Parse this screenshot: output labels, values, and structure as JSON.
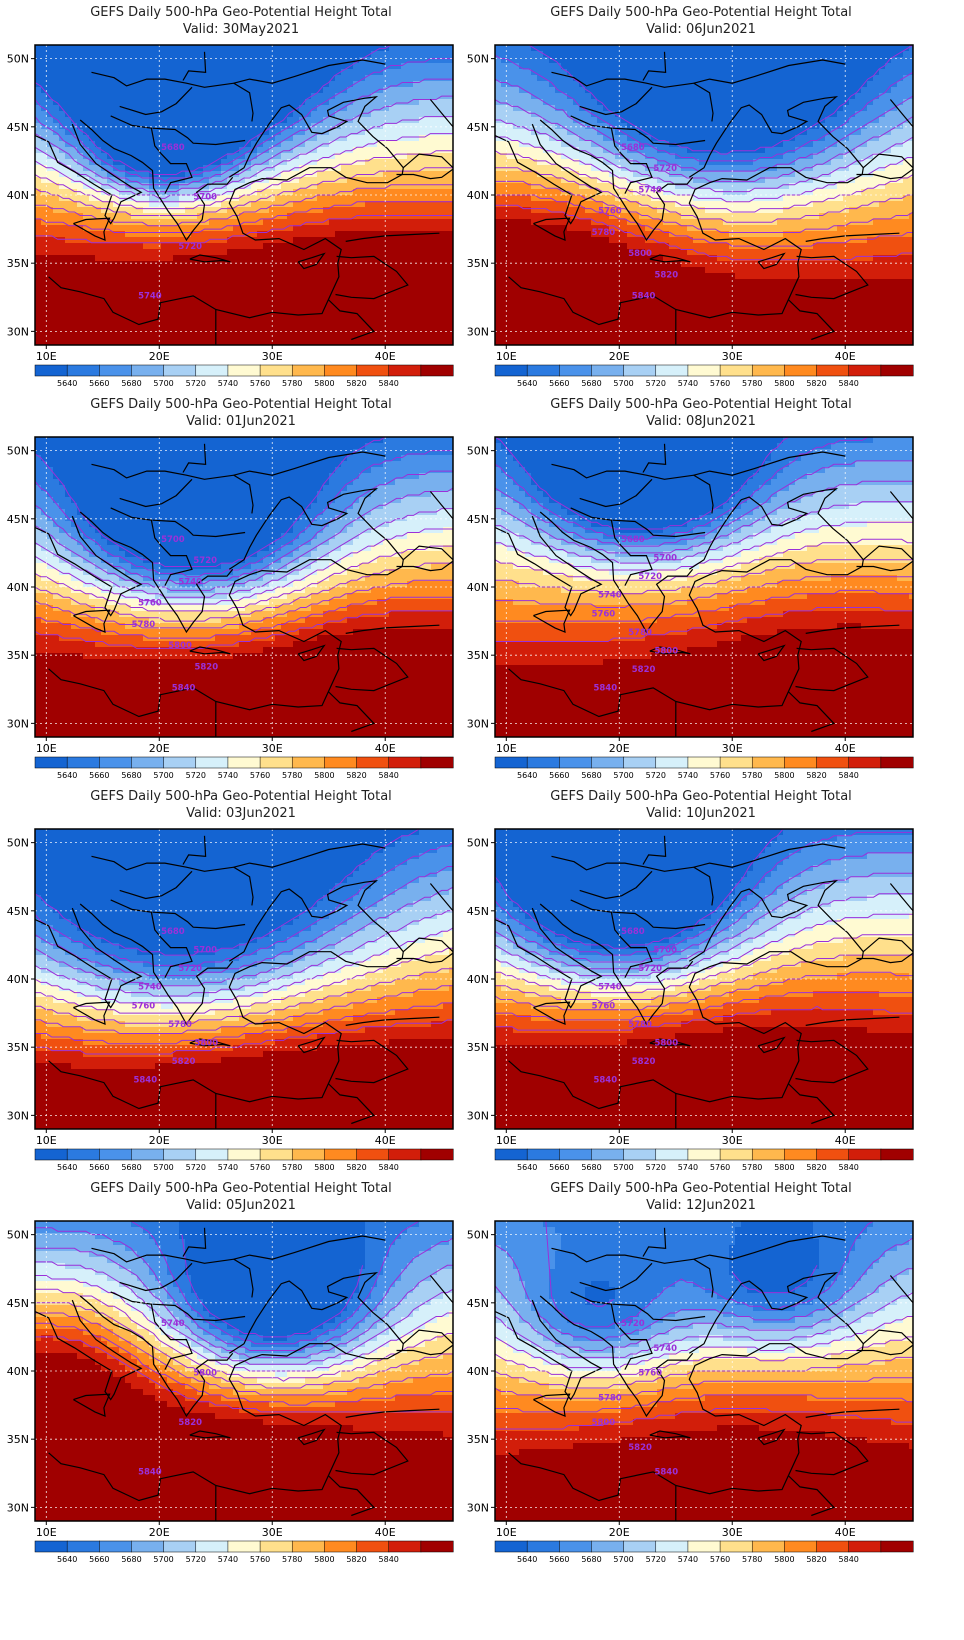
{
  "panels": [
    {
      "title": "GEFS Daily 500-hPa Geo-Potential Height Total",
      "valid": "Valid: 30May2021",
      "labels": [
        "5680",
        "5700",
        "5720",
        "5740"
      ],
      "field": {
        "base": 5800,
        "amp": 0,
        "lows": [
          [
            22,
            48,
            -180,
            7
          ],
          [
            20,
            43,
            -80,
            4
          ]
        ],
        "highs": [
          [
            40,
            30,
            60,
            8
          ]
        ],
        "grad": 14
      }
    },
    {
      "title": "GEFS Daily 500-hPa Geo-Potential Height Total",
      "valid": "Valid: 06Jun2021",
      "labels": [
        "5680",
        "5720",
        "5740",
        "5760",
        "5780",
        "5800",
        "5820",
        "5840"
      ],
      "field": {
        "base": 5790,
        "amp": 0,
        "lows": [
          [
            29,
            47,
            -150,
            8
          ]
        ],
        "highs": [
          [
            12,
            33,
            80,
            8
          ]
        ],
        "grad": 12
      }
    },
    {
      "title": "GEFS Daily 500-hPa Geo-Potential Height Total",
      "valid": "Valid: 01Jun2021",
      "labels": [
        "5700",
        "5720",
        "5740",
        "5760",
        "5780",
        "5800",
        "5820",
        "5840"
      ],
      "field": {
        "base": 5800,
        "amp": 0,
        "lows": [
          [
            23,
            45,
            -190,
            7
          ]
        ],
        "highs": [
          [
            40,
            30,
            50,
            8
          ]
        ],
        "grad": 14
      }
    },
    {
      "title": "GEFS Daily 500-hPa Geo-Potential Height Total",
      "valid": "Valid: 08Jun2021",
      "labels": [
        "5680",
        "5700",
        "5720",
        "5740",
        "5760",
        "5780",
        "5800",
        "5820",
        "5840"
      ],
      "field": {
        "base": 5790,
        "amp": 0,
        "lows": [
          [
            22,
            48,
            -160,
            6
          ]
        ],
        "highs": [
          [
            40,
            32,
            50,
            9
          ]
        ],
        "grad": 12
      }
    },
    {
      "title": "GEFS Daily 500-hPa Geo-Potential Height Total",
      "valid": "Valid: 03Jun2021",
      "labels": [
        "5680",
        "5700",
        "5720",
        "5740",
        "5760",
        "5780",
        "5800",
        "5820",
        "5840"
      ],
      "field": {
        "base": 5800,
        "amp": 0,
        "lows": [
          [
            22,
            45,
            -160,
            10
          ]
        ],
        "highs": [
          [
            30,
            30,
            40,
            9
          ]
        ],
        "grad": 13
      }
    },
    {
      "title": "GEFS Daily 500-hPa Geo-Potential Height Total",
      "valid": "Valid: 10Jun2021",
      "labels": [
        "5680",
        "5700",
        "5720",
        "5740",
        "5760",
        "5780",
        "5800",
        "5820",
        "5840"
      ],
      "field": {
        "base": 5800,
        "amp": 0,
        "lows": [
          [
            20,
            46,
            -180,
            7
          ]
        ],
        "highs": [
          [
            30,
            30,
            40,
            9
          ]
        ],
        "grad": 13
      }
    },
    {
      "title": "GEFS Daily 500-hPa Geo-Potential Height Total",
      "valid": "Valid: 05Jun2021",
      "labels": [
        "5740",
        "5800",
        "5820",
        "5840"
      ],
      "field": {
        "base": 5800,
        "amp": 0,
        "lows": [
          [
            30,
            45,
            -170,
            6
          ]
        ],
        "highs": [
          [
            10,
            40,
            80,
            6
          ],
          [
            25,
            30,
            60,
            9
          ]
        ],
        "grad": 12
      }
    },
    {
      "title": "GEFS Daily 500-hPa Geo-Potential Height Total",
      "valid": "Valid: 12Jun2021",
      "labels": [
        "5720",
        "5740",
        "5760",
        "5780",
        "5800",
        "5820",
        "5840"
      ],
      "field": {
        "base": 5790,
        "amp": 0,
        "lows": [
          [
            18,
            44,
            -100,
            5
          ],
          [
            34,
            46,
            -90,
            5
          ]
        ],
        "highs": [
          [
            30,
            30,
            40,
            9
          ]
        ],
        "grad": 11
      }
    }
  ],
  "axes": {
    "x_ticks": [
      "10E",
      "20E",
      "30E",
      "40E"
    ],
    "y_ticks": [
      "50N",
      "45N",
      "40N",
      "35N",
      "30N"
    ]
  },
  "colorbar": {
    "labels": [
      "5640",
      "5660",
      "5680",
      "5700",
      "5720",
      "5740",
      "5760",
      "5780",
      "5800",
      "5820",
      "5840"
    ],
    "colors": [
      "#1464d2",
      "#2b7ae0",
      "#4a92ea",
      "#78b0ee",
      "#a8d0f4",
      "#d6f0fa",
      "#fffad2",
      "#ffe08c",
      "#ffb84d",
      "#ff8a20",
      "#f05010",
      "#d21e0a",
      "#a00000"
    ]
  },
  "contour_color": "#9b30d9"
}
